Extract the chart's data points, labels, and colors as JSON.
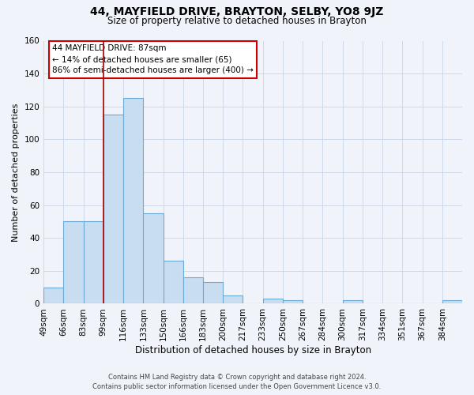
{
  "title": "44, MAYFIELD DRIVE, BRAYTON, SELBY, YO8 9JZ",
  "subtitle": "Size of property relative to detached houses in Brayton",
  "xlabel": "Distribution of detached houses by size in Brayton",
  "ylabel": "Number of detached properties",
  "bin_labels": [
    "49sqm",
    "66sqm",
    "83sqm",
    "99sqm",
    "116sqm",
    "133sqm",
    "150sqm",
    "166sqm",
    "183sqm",
    "200sqm",
    "217sqm",
    "233sqm",
    "250sqm",
    "267sqm",
    "284sqm",
    "300sqm",
    "317sqm",
    "334sqm",
    "351sqm",
    "367sqm",
    "384sqm"
  ],
  "bar_heights": [
    10,
    50,
    50,
    115,
    125,
    55,
    26,
    16,
    13,
    5,
    0,
    3,
    2,
    0,
    0,
    2,
    0,
    0,
    0,
    0,
    2
  ],
  "bar_color": "#c9ddf0",
  "bar_edge_color": "#6aaad4",
  "vline_x": 3,
  "vline_color": "#aa0000",
  "ylim": [
    0,
    160
  ],
  "yticks": [
    0,
    20,
    40,
    60,
    80,
    100,
    120,
    140,
    160
  ],
  "annotation_line1": "44 MAYFIELD DRIVE: 87sqm",
  "annotation_line2": "← 14% of detached houses are smaller (65)",
  "annotation_line3": "86% of semi-detached houses are larger (400) →",
  "footer_line1": "Contains HM Land Registry data © Crown copyright and database right 2024.",
  "footer_line2": "Contains public sector information licensed under the Open Government Licence v3.0.",
  "background_color": "#f0f4fa",
  "grid_color": "#c8d4e8",
  "title_fontsize": 10,
  "subtitle_fontsize": 8.5,
  "ylabel_fontsize": 8,
  "xlabel_fontsize": 8.5,
  "tick_fontsize": 7.5,
  "annot_fontsize": 7.5,
  "footer_fontsize": 6
}
